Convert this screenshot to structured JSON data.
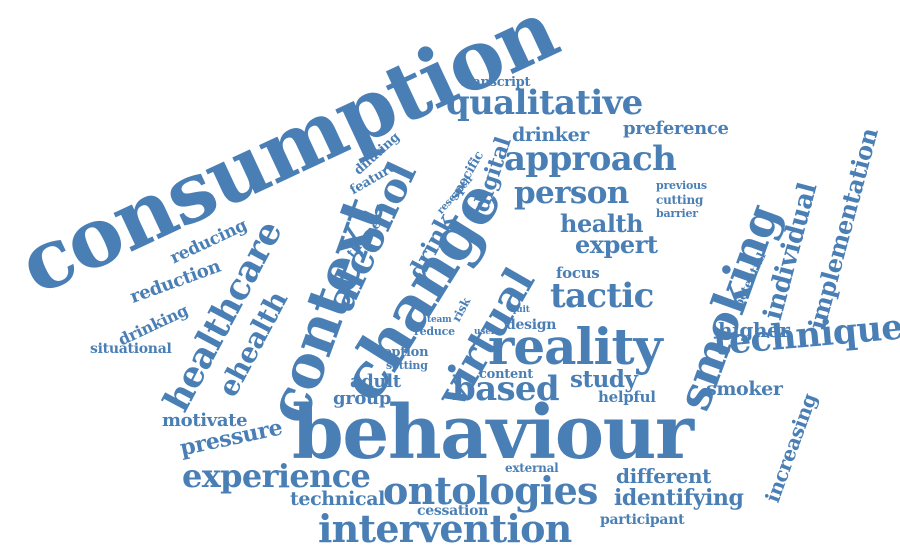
{
  "colors": {
    "word": "#4a7fb5",
    "background": "#ffffff"
  },
  "words": [
    "consumption",
    "context",
    "change",
    "alcohol",
    "healthcare",
    "ehealth",
    "reducing",
    "reduction",
    "drinking",
    "situational",
    "diluting",
    "feature",
    "theme",
    "research",
    "specific",
    "drink",
    "digital",
    "virtual",
    "transcript",
    "qualitative",
    "drinker",
    "preference",
    "approach",
    "person",
    "previous",
    "cutting",
    "barrier",
    "health",
    "expert",
    "tactic",
    "smoking",
    "individual",
    "implementation",
    "potential",
    "focus",
    "quit",
    "team",
    "user",
    "reduce",
    "risk",
    "design",
    "higher",
    "reality",
    "technique",
    "option",
    "setting",
    "adult",
    "group",
    "content",
    "based",
    "study",
    "helpful",
    "smoker",
    "motivate",
    "pressure",
    "behaviour",
    "increasing",
    "experience",
    "external",
    "different",
    "technical",
    "ontologies",
    "identifying",
    "cessation",
    "intervention",
    "participant"
  ]
}
